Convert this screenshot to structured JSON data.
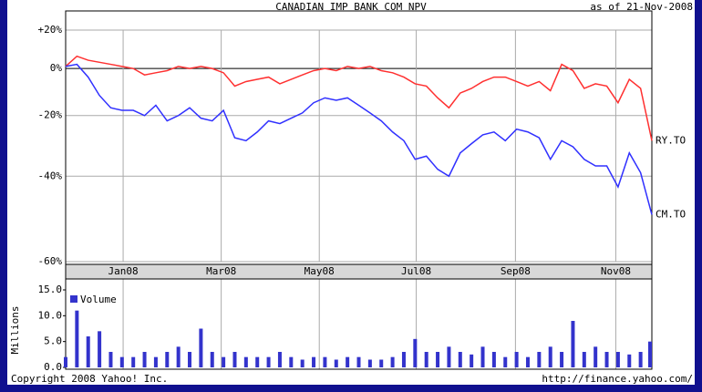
{
  "chart_data": [
    {
      "type": "line",
      "title": "CANADIAN IMP BANK COM NPV",
      "subtitle": "as of 21-Nov-2008",
      "log_scale": true,
      "grid": true,
      "xlim": [
        0,
        52
      ],
      "xticks": [
        {
          "value": 5.1,
          "label": "Jan08"
        },
        {
          "value": 13.8,
          "label": "Mar08"
        },
        {
          "value": 22.5,
          "label": "May08"
        },
        {
          "value": 31.1,
          "label": "Jul08"
        },
        {
          "value": 39.9,
          "label": "Sep08"
        },
        {
          "value": 48.8,
          "label": "Nov08"
        }
      ],
      "ylim": [
        -60,
        20
      ],
      "yticks": [
        {
          "value": 20,
          "label": "+20%"
        },
        {
          "value": 0,
          "label": "0%"
        },
        {
          "value": -20,
          "label": "-20%"
        },
        {
          "value": -40,
          "label": "-40%"
        },
        {
          "value": -60,
          "label": "-60%"
        }
      ],
      "series": [
        {
          "name": "RY.TO",
          "color": "#ff3030",
          "values": [
            1,
            6,
            4,
            3,
            2,
            1,
            0,
            -3,
            -2,
            -1,
            1,
            0,
            1,
            0,
            -2,
            -8,
            -6,
            -5,
            -4,
            -7,
            -5,
            -3,
            -1,
            0,
            -1,
            1,
            0,
            1,
            -1,
            -2,
            -4,
            -7,
            -8,
            -13,
            -17,
            -11,
            -9,
            -6,
            -4,
            -4,
            -6,
            -8,
            -6,
            -10,
            2,
            -1,
            -9,
            -7,
            -8,
            -15,
            -5,
            -9,
            -29
          ]
        },
        {
          "name": "CM.TO",
          "color": "#3030ff",
          "values": [
            1,
            2,
            -4,
            -12,
            -17,
            -18,
            -18,
            -20,
            -16,
            -22,
            -20,
            -17,
            -21,
            -22,
            -18,
            -28,
            -29,
            -26,
            -22,
            -23,
            -21,
            -19,
            -15,
            -13,
            -14,
            -13,
            -16,
            -19,
            -22,
            -26,
            -29,
            -35,
            -34,
            -38,
            -40,
            -33,
            -30,
            -27,
            -26,
            -29,
            -25,
            -26,
            -28,
            -35,
            -29,
            -31,
            -35,
            -37,
            -37,
            -43,
            -33,
            -39,
            -50
          ]
        }
      ]
    },
    {
      "type": "bar",
      "name": "Volume",
      "ylabel": "Millions",
      "color": "#3333cc",
      "xlim": [
        0,
        52
      ],
      "ylim": [
        0,
        15
      ],
      "yticks": [
        {
          "value": 15,
          "label": "15.0"
        },
        {
          "value": 10,
          "label": "10.0"
        },
        {
          "value": 5,
          "label": "5.0"
        },
        {
          "value": 0,
          "label": "0.0"
        }
      ],
      "values": [
        2,
        11,
        6,
        7,
        3,
        2,
        2,
        3,
        2,
        3,
        4,
        3,
        7.5,
        3,
        2,
        3,
        2,
        2,
        2,
        3,
        2,
        1.5,
        2,
        2,
        1.5,
        2,
        2,
        1.5,
        1.5,
        2,
        3,
        5.5,
        3,
        3,
        4,
        3,
        2.5,
        4,
        3,
        2,
        3,
        2,
        3,
        4,
        3,
        9,
        3,
        4,
        3,
        3,
        2.5,
        3,
        5
      ]
    }
  ],
  "footer": {
    "copyright": "Copyright 2008 Yahoo! Inc.",
    "url": "http://finance.yahoo.com/"
  }
}
